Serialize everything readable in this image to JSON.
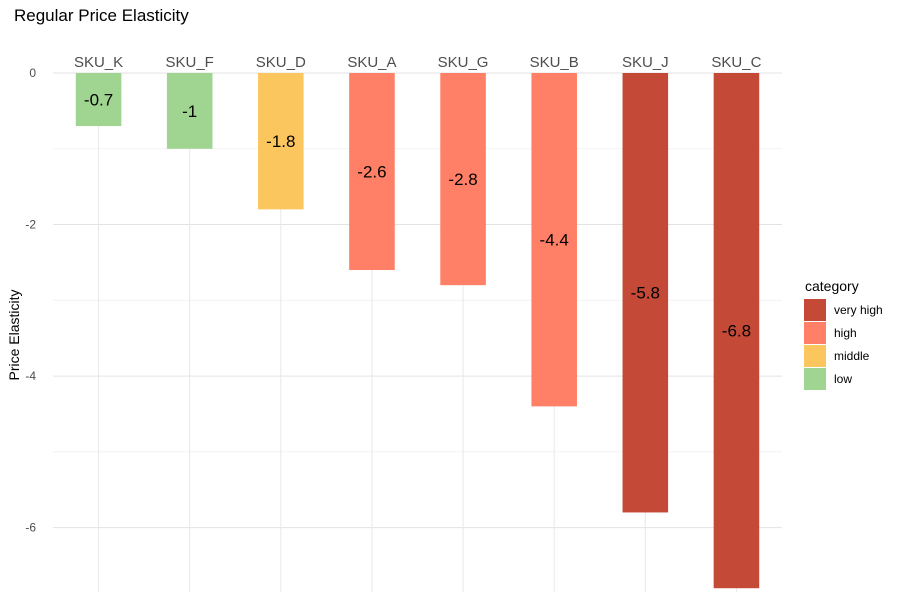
{
  "chart_data": {
    "type": "bar",
    "title": "Regular Price Elasticity",
    "xlabel": "",
    "ylabel": "Price Elasticity",
    "categories": [
      "SKU_K",
      "SKU_F",
      "SKU_D",
      "SKU_A",
      "SKU_G",
      "SKU_B",
      "SKU_J",
      "SKU_C"
    ],
    "values": [
      -0.7,
      -1,
      -1.8,
      -2.6,
      -2.8,
      -4.4,
      -5.8,
      -6.8
    ],
    "value_labels": [
      "-0.7",
      "-1",
      "-1.8",
      "-2.6",
      "-2.8",
      "-4.4",
      "-5.8",
      "-6.8"
    ],
    "bar_category": [
      "low",
      "low",
      "middle",
      "high",
      "high",
      "high",
      "very high",
      "very high"
    ],
    "ylim": [
      -6.85,
      0
    ],
    "yticks": [
      0,
      -2,
      -4,
      -6
    ],
    "x_labels_position": "top",
    "grid": true,
    "legend": {
      "title": "category",
      "position": "right",
      "entries": [
        {
          "label": "very high",
          "color": "#c44a37"
        },
        {
          "label": "high",
          "color": "#ff8066"
        },
        {
          "label": "middle",
          "color": "#fcc65f"
        },
        {
          "label": "low",
          "color": "#9fd591"
        }
      ]
    }
  }
}
